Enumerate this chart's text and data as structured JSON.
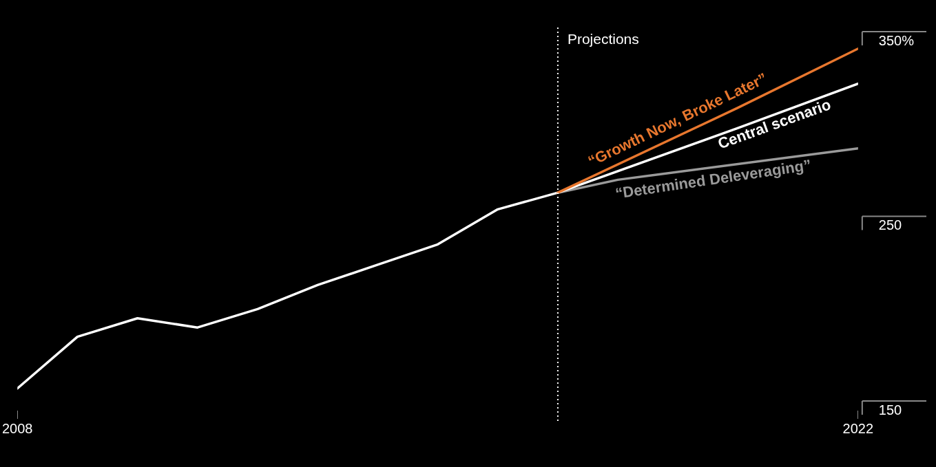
{
  "chart_data": {
    "type": "line",
    "xlim": [
      2008,
      2022
    ],
    "xticks": [
      2008,
      2022
    ],
    "ylim": [
      150,
      350
    ],
    "yticks": [
      150,
      250,
      {
        "value": 350,
        "label": "350%"
      }
    ],
    "grid": false,
    "legend": false,
    "marker": "none",
    "line_style": "solid",
    "series": [
      {
        "name": "“Growth Now, Broke Later”",
        "color": "#e8772e",
        "x": [
          2017,
          2020,
          2022
        ],
        "values": [
          268,
          314,
          346
        ]
      },
      {
        "name": "Central scenario",
        "color": "#ffffff",
        "x": [
          2008,
          2009,
          2010,
          2011,
          2012,
          2013,
          2014,
          2015,
          2016,
          2017,
          2020,
          2022
        ],
        "values": [
          162,
          190,
          200,
          195,
          205,
          218,
          229,
          240,
          259,
          268,
          303,
          327
        ]
      },
      {
        "name": "“Determined Deleveraging”",
        "color": "#9a9a9a",
        "x": [
          2017,
          2018,
          2022
        ],
        "values": [
          268,
          275,
          292
        ]
      }
    ],
    "ref_lines": [
      {
        "axis": "x",
        "value": 2017,
        "label": "Projections",
        "color": "#ffffff",
        "line_style": "dotted"
      }
    ]
  }
}
